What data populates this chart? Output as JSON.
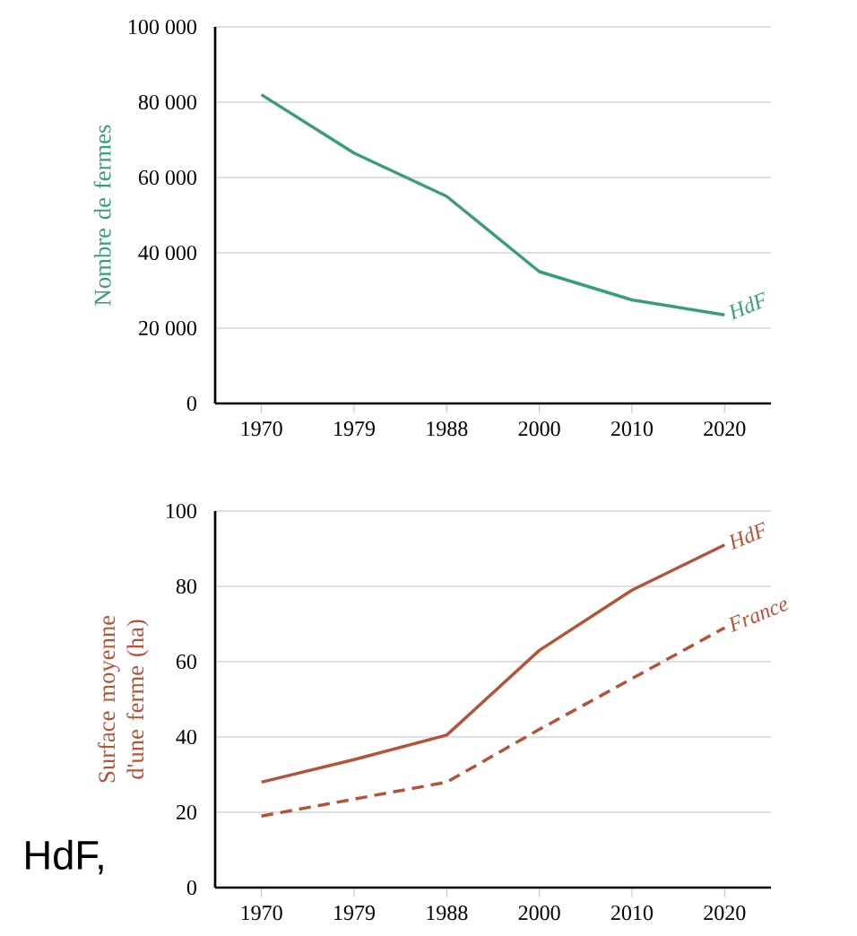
{
  "chart_data": [
    {
      "type": "line",
      "ylabel": "Nombre de fermes",
      "categories": [
        "1970",
        "1979",
        "1988",
        "2000",
        "2010",
        "2020"
      ],
      "series": [
        {
          "name": "HdF",
          "color": "#3a9e72",
          "line_style": "solid",
          "values": [
            82000,
            66500,
            55000,
            35000,
            27500,
            23500
          ]
        }
      ],
      "ylim": [
        0,
        100000
      ],
      "yticks": [
        0,
        {
          "value": 20000,
          "label": "20 000"
        },
        {
          "value": 40000,
          "label": "40 000"
        },
        {
          "value": 60000,
          "label": "60 000"
        },
        {
          "value": 80000,
          "label": "80 000"
        },
        {
          "value": 100000,
          "label": "100 000"
        }
      ],
      "grid": "y"
    },
    {
      "type": "line",
      "ylabel": "Surface moyenne d'une ferme (ha)",
      "categories": [
        "1970",
        "1979",
        "1988",
        "2000",
        "2010",
        "2020"
      ],
      "series": [
        {
          "name": "HdF",
          "color": "#b0543a",
          "line_style": "solid",
          "values": [
            28,
            34,
            40.5,
            63,
            79,
            91
          ]
        },
        {
          "name": "France",
          "color": "#b0543a",
          "line_style": "dashed",
          "values": [
            19,
            23.5,
            28,
            42,
            55.5,
            69
          ]
        }
      ],
      "ylim": [
        0,
        100
      ],
      "yticks": [
        0,
        20,
        40,
        60,
        80,
        100
      ],
      "grid": "y",
      "annotations": [
        "HdF,"
      ]
    }
  ]
}
